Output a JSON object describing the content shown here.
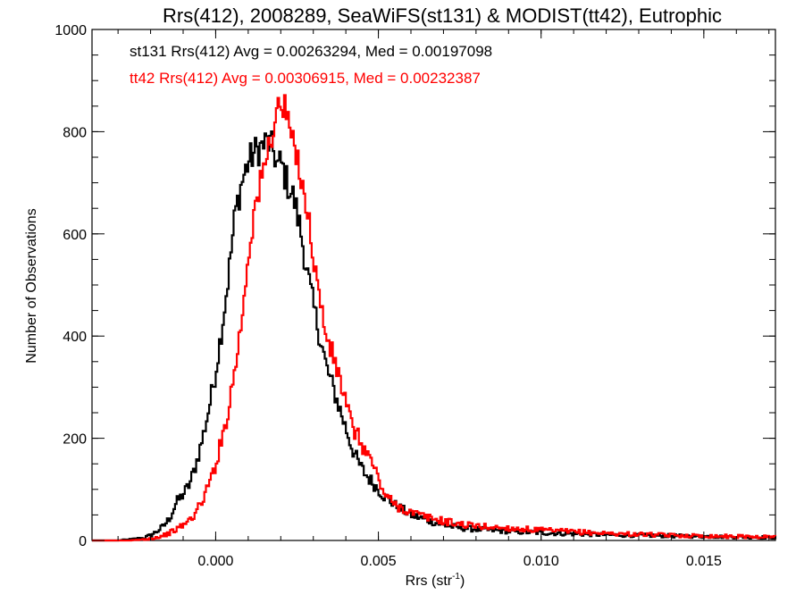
{
  "chart_data": {
    "type": "line",
    "title": "Rrs(412), 2008289, SeaWiFS(st131) & MODIST(tt42), Eutrophic",
    "xlabel": "Rrs (str",
    "xlabel_sup": "-1",
    "xlabel_close": ")",
    "ylabel": "Number of Observations",
    "xlim": [
      -0.0038,
      0.0172
    ],
    "ylim": [
      0,
      1000
    ],
    "x_ticks": [
      0.0,
      0.005,
      0.01,
      0.015
    ],
    "x_tick_labels": [
      "0.000",
      "0.005",
      "0.010",
      "0.015"
    ],
    "y_ticks": [
      0,
      200,
      400,
      600,
      800,
      1000
    ],
    "y_tick_labels": [
      "0",
      "200",
      "400",
      "600",
      "800",
      "1000"
    ],
    "grid": false,
    "annotations": [
      {
        "text": "st131 Rrs(412) Avg = 0.00263294, Med = 0.00197098",
        "color": "#000000"
      },
      {
        "text": "tt42 Rrs(412) Avg = 0.00306915, Med = 0.00232387",
        "color": "#ff0000"
      }
    ],
    "series": [
      {
        "color": "#000000",
        "x": [
          -0.0038,
          -0.003,
          -0.0026,
          -0.0022,
          -0.002,
          -0.0018,
          -0.0016,
          -0.0014,
          -0.0012,
          -0.001,
          -0.0008,
          -0.0006,
          -0.0004,
          -0.0002,
          0.0,
          0.0002,
          0.0004,
          0.0006,
          0.0008,
          0.001,
          0.0012,
          0.0014,
          0.0015,
          0.0016,
          0.0017,
          0.0018,
          0.0019,
          0.002,
          0.0021,
          0.0022,
          0.0024,
          0.0026,
          0.0028,
          0.003,
          0.0032,
          0.0034,
          0.0036,
          0.0038,
          0.004,
          0.0042,
          0.0044,
          0.0046,
          0.0048,
          0.005,
          0.0052,
          0.0055,
          0.006,
          0.0065,
          0.007,
          0.0075,
          0.008,
          0.009,
          0.01,
          0.011,
          0.012,
          0.013,
          0.014,
          0.015,
          0.016,
          0.017
        ],
        "y": [
          0,
          0,
          2,
          5,
          10,
          18,
          28,
          45,
          75,
          90,
          110,
          150,
          200,
          260,
          330,
          420,
          520,
          640,
          700,
          740,
          760,
          770,
          775,
          780,
          770,
          760,
          730,
          740,
          720,
          700,
          670,
          610,
          530,
          460,
          400,
          340,
          300,
          260,
          220,
          180,
          150,
          130,
          115,
          100,
          85,
          70,
          50,
          40,
          30,
          25,
          22,
          18,
          15,
          13,
          11,
          10,
          9,
          8,
          7,
          6
        ]
      },
      {
        "color": "#ff0000",
        "x": [
          -0.0038,
          -0.003,
          -0.0026,
          -0.0022,
          -0.002,
          -0.0018,
          -0.0016,
          -0.0014,
          -0.0012,
          -0.001,
          -0.0008,
          -0.0006,
          -0.0004,
          -0.0002,
          0.0,
          0.0002,
          0.0004,
          0.0006,
          0.0008,
          0.001,
          0.0012,
          0.0014,
          0.0016,
          0.0018,
          0.0019,
          0.002,
          0.0021,
          0.0022,
          0.0023,
          0.0024,
          0.0026,
          0.0028,
          0.003,
          0.0032,
          0.0034,
          0.0036,
          0.0038,
          0.004,
          0.0042,
          0.0044,
          0.0046,
          0.0048,
          0.005,
          0.0052,
          0.0055,
          0.006,
          0.0065,
          0.007,
          0.0075,
          0.008,
          0.009,
          0.01,
          0.011,
          0.012,
          0.013,
          0.014,
          0.015,
          0.016,
          0.017
        ],
        "y": [
          0,
          0,
          0,
          2,
          4,
          6,
          10,
          15,
          22,
          30,
          40,
          55,
          80,
          110,
          150,
          200,
          260,
          340,
          430,
          560,
          650,
          700,
          760,
          820,
          840,
          860,
          840,
          830,
          800,
          760,
          730,
          650,
          560,
          470,
          400,
          360,
          320,
          270,
          220,
          200,
          175,
          155,
          120,
          90,
          70,
          55,
          45,
          38,
          32,
          28,
          24,
          20,
          17,
          14,
          12,
          10,
          9,
          8,
          7
        ]
      }
    ]
  }
}
